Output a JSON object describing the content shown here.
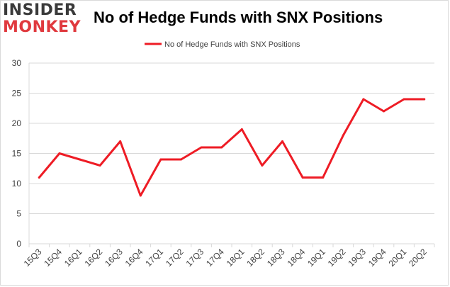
{
  "logo": {
    "line1": "INSIDER",
    "line2": "MONKEY"
  },
  "colors": {
    "line": "#ee1c25",
    "grid": "#d9d9d9",
    "logo_red": "#e0393e"
  },
  "chart_data": {
    "type": "line",
    "title": "No of Hedge Funds with SNX Positions",
    "xlabel": "",
    "ylabel": "",
    "ylim": [
      0,
      30
    ],
    "yticks": [
      0,
      5,
      10,
      15,
      20,
      25,
      30
    ],
    "grid": "horizontal",
    "legend_position": "top-center",
    "categories": [
      "15Q3",
      "15Q4",
      "16Q1",
      "16Q2",
      "16Q3",
      "16Q4",
      "17Q1",
      "17Q2",
      "17Q3",
      "17Q4",
      "18Q1",
      "18Q2",
      "18Q3",
      "18Q4",
      "19Q1",
      "19Q2",
      "19Q3",
      "19Q4",
      "20Q1",
      "20Q2"
    ],
    "series": [
      {
        "name": "No of Hedge Funds with SNX Positions",
        "values": [
          11,
          15,
          14,
          13,
          17,
          8,
          14,
          14,
          16,
          16,
          19,
          13,
          17,
          11,
          11,
          18,
          24,
          22,
          24,
          24
        ]
      }
    ]
  }
}
